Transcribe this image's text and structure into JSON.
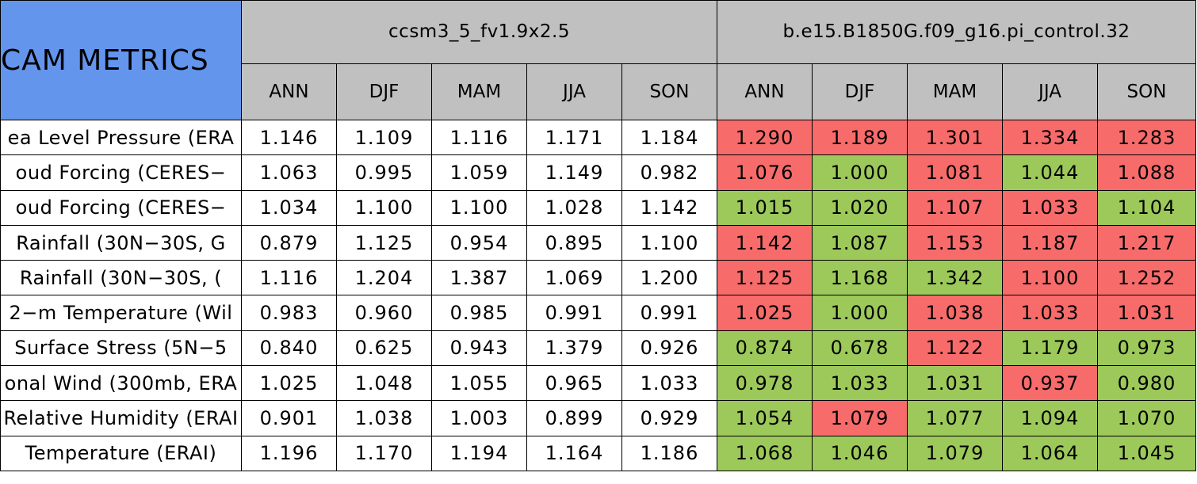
{
  "table": {
    "title": "CAM METRICS",
    "groups": [
      {
        "name": "ccsm3_5_fv1.9x2.5",
        "seasons": [
          "ANN",
          "DJF",
          "MAM",
          "JJA",
          "SON"
        ]
      },
      {
        "name": "b.e15.B1850G.f09_g16.pi_control.32",
        "seasons": [
          "ANN",
          "DJF",
          "MAM",
          "JJA",
          "SON"
        ]
      }
    ],
    "rows": [
      {
        "label": "ea Level Pressure (ERA",
        "values": [
          "1.146",
          "1.109",
          "1.116",
          "1.171",
          "1.184",
          "1.290",
          "1.189",
          "1.301",
          "1.334",
          "1.283"
        ],
        "colors": [
          "#ffffff",
          "#ffffff",
          "#ffffff",
          "#ffffff",
          "#ffffff",
          "#f86b6b",
          "#f86b6b",
          "#f86b6b",
          "#f86b6b",
          "#f86b6b"
        ]
      },
      {
        "label": "oud Forcing (CERES−",
        "values": [
          "1.063",
          "0.995",
          "1.059",
          "1.149",
          "0.982",
          "1.076",
          "1.000",
          "1.081",
          "1.044",
          "1.088"
        ],
        "colors": [
          "#ffffff",
          "#ffffff",
          "#ffffff",
          "#ffffff",
          "#ffffff",
          "#f86b6b",
          "#9cc95a",
          "#f86b6b",
          "#9cc95a",
          "#f86b6b"
        ]
      },
      {
        "label": "oud Forcing (CERES−",
        "values": [
          "1.034",
          "1.100",
          "1.100",
          "1.028",
          "1.142",
          "1.015",
          "1.020",
          "1.107",
          "1.033",
          "1.104"
        ],
        "colors": [
          "#ffffff",
          "#ffffff",
          "#ffffff",
          "#ffffff",
          "#ffffff",
          "#9cc95a",
          "#9cc95a",
          "#f86b6b",
          "#f86b6b",
          "#9cc95a"
        ]
      },
      {
        "label": "Rainfall (30N−30S, G",
        "values": [
          "0.879",
          "1.125",
          "0.954",
          "0.895",
          "1.100",
          "1.142",
          "1.087",
          "1.153",
          "1.187",
          "1.217"
        ],
        "colors": [
          "#ffffff",
          "#ffffff",
          "#ffffff",
          "#ffffff",
          "#ffffff",
          "#f86b6b",
          "#9cc95a",
          "#f86b6b",
          "#f86b6b",
          "#f86b6b"
        ]
      },
      {
        "label": "Rainfall (30N−30S, (",
        "values": [
          "1.116",
          "1.204",
          "1.387",
          "1.069",
          "1.200",
          "1.125",
          "1.168",
          "1.342",
          "1.100",
          "1.252"
        ],
        "colors": [
          "#ffffff",
          "#ffffff",
          "#ffffff",
          "#ffffff",
          "#ffffff",
          "#f86b6b",
          "#9cc95a",
          "#9cc95a",
          "#f86b6b",
          "#f86b6b"
        ]
      },
      {
        "label": "2−m Temperature (Wil",
        "values": [
          "0.983",
          "0.960",
          "0.985",
          "0.991",
          "0.991",
          "1.025",
          "1.000",
          "1.038",
          "1.033",
          "1.031"
        ],
        "colors": [
          "#ffffff",
          "#ffffff",
          "#ffffff",
          "#ffffff",
          "#ffffff",
          "#f86b6b",
          "#9cc95a",
          "#f86b6b",
          "#f86b6b",
          "#f86b6b"
        ]
      },
      {
        "label": "Surface Stress (5N−5",
        "values": [
          "0.840",
          "0.625",
          "0.943",
          "1.379",
          "0.926",
          "0.874",
          "0.678",
          "1.122",
          "1.179",
          "0.973"
        ],
        "colors": [
          "#ffffff",
          "#ffffff",
          "#ffffff",
          "#ffffff",
          "#ffffff",
          "#9cc95a",
          "#9cc95a",
          "#f86b6b",
          "#9cc95a",
          "#9cc95a"
        ]
      },
      {
        "label": "onal Wind (300mb, ERA",
        "values": [
          "1.025",
          "1.048",
          "1.055",
          "0.965",
          "1.033",
          "0.978",
          "1.033",
          "1.031",
          "0.937",
          "0.980"
        ],
        "colors": [
          "#ffffff",
          "#ffffff",
          "#ffffff",
          "#ffffff",
          "#ffffff",
          "#9cc95a",
          "#9cc95a",
          "#9cc95a",
          "#f86b6b",
          "#9cc95a"
        ]
      },
      {
        "label": "Relative Humidity (ERAI",
        "values": [
          "0.901",
          "1.038",
          "1.003",
          "0.899",
          "0.929",
          "1.054",
          "1.079",
          "1.077",
          "1.094",
          "1.070"
        ],
        "colors": [
          "#ffffff",
          "#ffffff",
          "#ffffff",
          "#ffffff",
          "#ffffff",
          "#9cc95a",
          "#f86b6b",
          "#9cc95a",
          "#9cc95a",
          "#9cc95a"
        ]
      },
      {
        "label": "Temperature (ERAI)",
        "values": [
          "1.196",
          "1.170",
          "1.194",
          "1.164",
          "1.186",
          "1.068",
          "1.046",
          "1.079",
          "1.064",
          "1.045"
        ],
        "colors": [
          "#ffffff",
          "#ffffff",
          "#ffffff",
          "#ffffff",
          "#ffffff",
          "#9cc95a",
          "#9cc95a",
          "#9cc95a",
          "#9cc95a",
          "#9cc95a"
        ]
      }
    ]
  }
}
